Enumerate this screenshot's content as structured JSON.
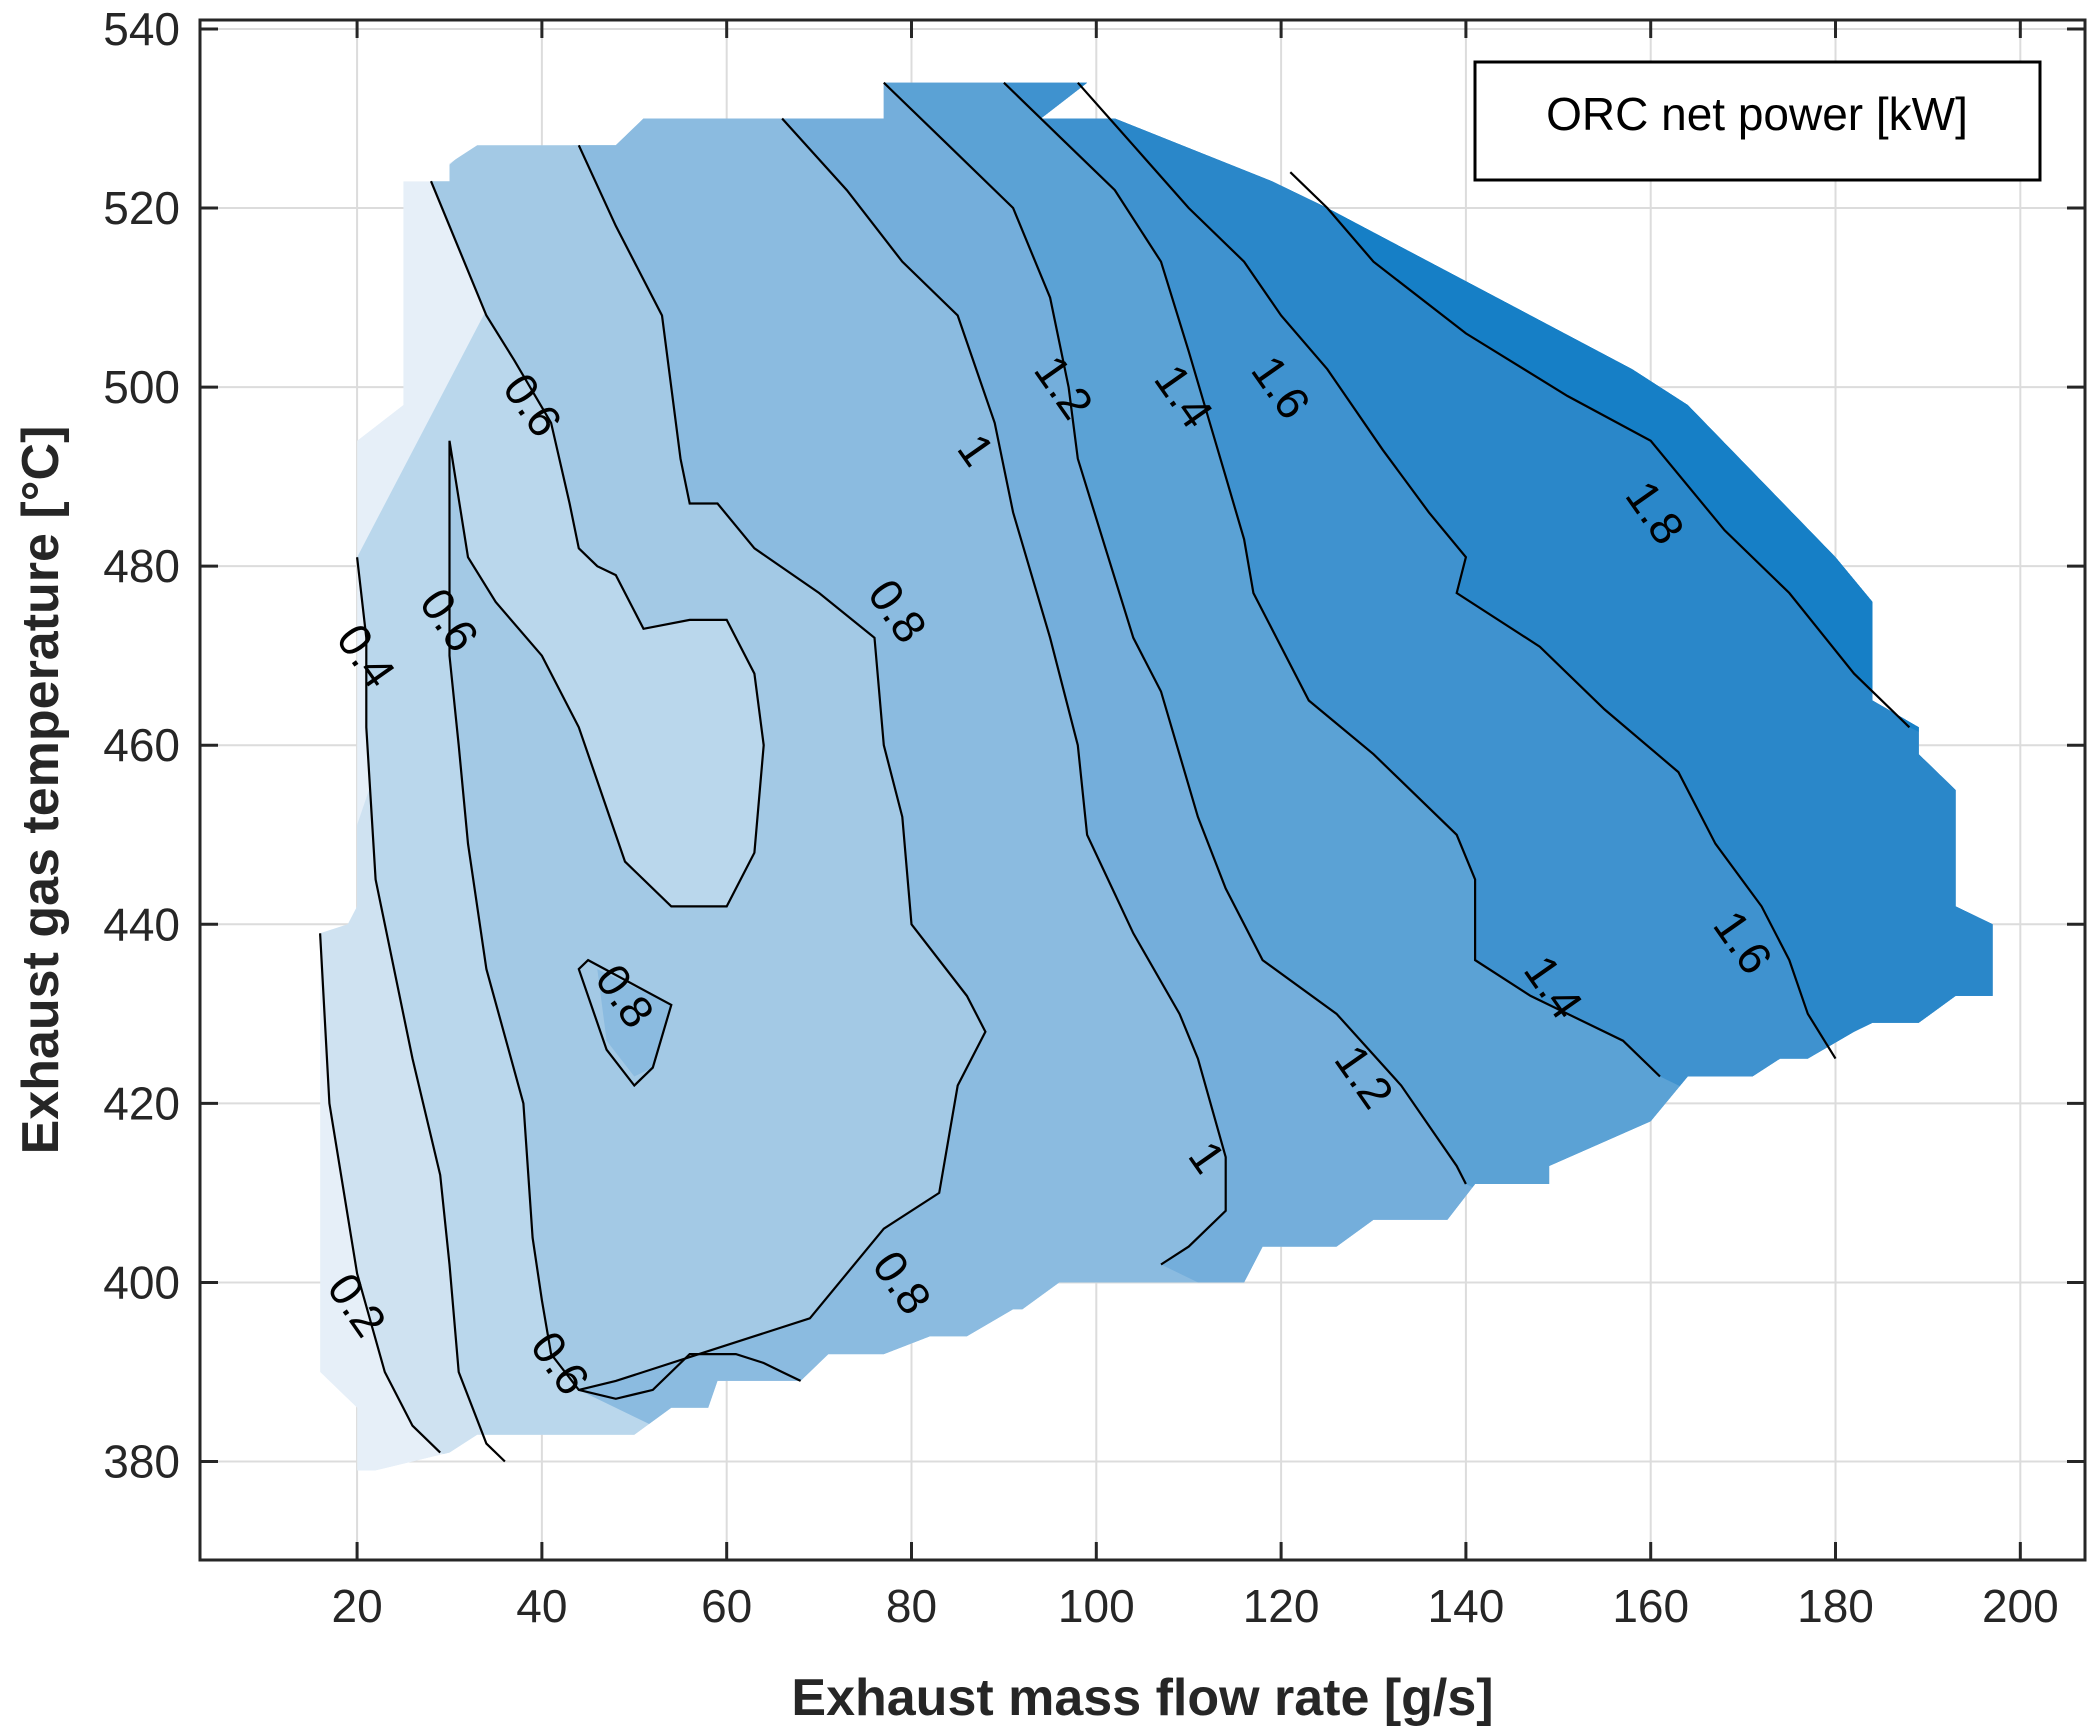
{
  "chart_data": {
    "type": "contour",
    "title": "",
    "legend": {
      "label": "ORC net power [kW]",
      "placement": "top-right"
    },
    "xlabel": "Exhaust mass flow rate [g/s]",
    "ylabel": "Exhaust gas temperature [°C]",
    "xlim": [
      3,
      207
    ],
    "ylim": [
      369,
      541
    ],
    "xticks": [
      20,
      40,
      60,
      80,
      100,
      120,
      140,
      160,
      180,
      200
    ],
    "yticks": [
      380,
      400,
      420,
      440,
      460,
      480,
      500,
      520,
      540
    ],
    "grid": true,
    "levels": [
      0.2,
      0.4,
      0.6,
      0.8,
      1.0,
      1.2,
      1.4,
      1.6,
      1.8
    ],
    "colors": {
      "below_0.2": "#e6eff8",
      "0.2-0.4": "#cfe2f1",
      "0.4-0.6": "#bad7ec",
      "0.6-0.8": "#a3c9e5",
      "0.8-1.0": "#8bbbe0",
      "1.0-1.2": "#74aedb",
      "1.2-1.4": "#5ba2d5",
      "1.4-1.6": "#3f92cf",
      "1.6-1.8": "#2a87c9",
      "above_1.8": "#167fc6",
      "contour_line": "#000000",
      "grid": "#dcdcdc",
      "axis": "#262626"
    },
    "domain_outline": [
      [
        27,
        523
      ],
      [
        30,
        523
      ],
      [
        30,
        525
      ],
      [
        33,
        527
      ],
      [
        44,
        527
      ],
      [
        48,
        527
      ],
      [
        51,
        530
      ],
      [
        66,
        530
      ],
      [
        77,
        530
      ],
      [
        77,
        534
      ],
      [
        90,
        534
      ],
      [
        99,
        534
      ],
      [
        94,
        530
      ],
      [
        102,
        530
      ],
      [
        119,
        523
      ],
      [
        125,
        520
      ],
      [
        158,
        502
      ],
      [
        164,
        498
      ],
      [
        180,
        481
      ],
      [
        184,
        476
      ],
      [
        184,
        465
      ],
      [
        189,
        462
      ],
      [
        189,
        459
      ],
      [
        193,
        455
      ],
      [
        193,
        442
      ],
      [
        197,
        440
      ],
      [
        197,
        432
      ],
      [
        193,
        432
      ],
      [
        189,
        429
      ],
      [
        184,
        429
      ],
      [
        182,
        428
      ],
      [
        177,
        425
      ],
      [
        174,
        425
      ],
      [
        171,
        423
      ],
      [
        164,
        423
      ],
      [
        160,
        418
      ],
      [
        149,
        413
      ],
      [
        149,
        411
      ],
      [
        141,
        411
      ],
      [
        138,
        407
      ],
      [
        130,
        407
      ],
      [
        126,
        404
      ],
      [
        118,
        404
      ],
      [
        116,
        400
      ],
      [
        107,
        400
      ],
      [
        96,
        400
      ],
      [
        92,
        397
      ],
      [
        91,
        397
      ],
      [
        86,
        394
      ],
      [
        82,
        394
      ],
      [
        77,
        392
      ],
      [
        71,
        392
      ],
      [
        68,
        389
      ],
      [
        59,
        389
      ],
      [
        58,
        386
      ],
      [
        54,
        386
      ],
      [
        50,
        383
      ],
      [
        43,
        383
      ],
      [
        39,
        383
      ],
      [
        33,
        383
      ],
      [
        30,
        381
      ],
      [
        22,
        379
      ],
      [
        20,
        379
      ],
      [
        20,
        386
      ],
      [
        16,
        390
      ],
      [
        16,
        439
      ],
      [
        19,
        440
      ],
      [
        20,
        442
      ],
      [
        20,
        494
      ],
      [
        25,
        498
      ],
      [
        25,
        523
      ]
    ],
    "contours": [
      {
        "level": 0.2,
        "label_at": [
          [
            20,
            397.5
          ]
        ],
        "path": [
          [
            16,
            439
          ],
          [
            17,
            420
          ],
          [
            20,
            401
          ],
          [
            23,
            390
          ],
          [
            26,
            384
          ],
          [
            29,
            381
          ]
        ]
      },
      {
        "level": 0.4,
        "label_at": [
          [
            21,
            470
          ]
        ],
        "path": [
          [
            20,
            481
          ],
          [
            21,
            472
          ],
          [
            21,
            462
          ],
          [
            22,
            445
          ],
          [
            26,
            425
          ],
          [
            29,
            412
          ],
          [
            30,
            402
          ],
          [
            31,
            390
          ],
          [
            34,
            382
          ],
          [
            36,
            380
          ]
        ]
      },
      {
        "level": 0.6,
        "label_at": [
          [
            39,
            498
          ],
          [
            30,
            474
          ],
          [
            42,
            391
          ]
        ],
        "path": [
          [
            28,
            523
          ],
          [
            34,
            508
          ],
          [
            37,
            503
          ],
          [
            41,
            496
          ],
          [
            43,
            487
          ],
          [
            44,
            482
          ],
          [
            46,
            480
          ],
          [
            48,
            479
          ],
          [
            51,
            473
          ],
          [
            56,
            474
          ],
          [
            60,
            474
          ],
          [
            63,
            468
          ],
          [
            64,
            460
          ],
          [
            63,
            448
          ],
          [
            60,
            442
          ],
          [
            54,
            442
          ],
          [
            49,
            447
          ],
          [
            46,
            456
          ],
          [
            44,
            462
          ],
          [
            40,
            470
          ],
          [
            35,
            476
          ],
          [
            32,
            481
          ],
          [
            30,
            494
          ],
          [
            30,
            470
          ],
          [
            31,
            460
          ],
          [
            32,
            449
          ],
          [
            34,
            435
          ],
          [
            38,
            420
          ],
          [
            39,
            405
          ],
          [
            40,
            398
          ],
          [
            41,
            392
          ],
          [
            44,
            388
          ],
          [
            48,
            387
          ],
          [
            52,
            388
          ],
          [
            56,
            392
          ],
          [
            61,
            392
          ],
          [
            64,
            391
          ],
          [
            66,
            390
          ],
          [
            68,
            389
          ]
        ]
      },
      {
        "level": 0.8,
        "label_at": [
          [
            49,
            432
          ],
          [
            78.5,
            475
          ],
          [
            79,
            400
          ]
        ],
        "path": [
          [
            44,
            527
          ],
          [
            48,
            518
          ],
          [
            53,
            508
          ],
          [
            55,
            492
          ],
          [
            56,
            487
          ],
          [
            59,
            487
          ],
          [
            63,
            482
          ],
          [
            70,
            477
          ],
          [
            76,
            472
          ],
          [
            77,
            460
          ],
          [
            79,
            452
          ],
          [
            80,
            440
          ],
          [
            86,
            432
          ],
          [
            88,
            428
          ],
          [
            85,
            422
          ],
          [
            83,
            410
          ],
          [
            77,
            406
          ],
          [
            69,
            396
          ],
          [
            63,
            394
          ],
          [
            57,
            392
          ],
          [
            51,
            390
          ],
          [
            48,
            389
          ],
          [
            44,
            388
          ]
        ]
      },
      {
        "level": 1.0,
        "label_at": [
          [
            87,
            493
          ],
          [
            112,
            414
          ]
        ],
        "path": [
          [
            66,
            530
          ],
          [
            73,
            522
          ],
          [
            79,
            514
          ],
          [
            85,
            508
          ],
          [
            89,
            496
          ],
          [
            91,
            486
          ],
          [
            95,
            472
          ],
          [
            98,
            460
          ],
          [
            99,
            450
          ],
          [
            104,
            439
          ],
          [
            109,
            430
          ],
          [
            111,
            425
          ],
          [
            114,
            414
          ],
          [
            114,
            408
          ],
          [
            110,
            404
          ],
          [
            107,
            402
          ]
        ]
      },
      {
        "level": 1.2,
        "label_at": [
          [
            96.5,
            500
          ],
          [
            129,
            423
          ]
        ],
        "path": [
          [
            77,
            534
          ],
          [
            84,
            527
          ],
          [
            91,
            520
          ],
          [
            95,
            510
          ],
          [
            97,
            500
          ],
          [
            98,
            492
          ],
          [
            101,
            482
          ],
          [
            104,
            472
          ],
          [
            107,
            466
          ],
          [
            111,
            452
          ],
          [
            114,
            444
          ],
          [
            118,
            436
          ],
          [
            126,
            430
          ],
          [
            133,
            422
          ],
          [
            139,
            413
          ],
          [
            140,
            411
          ]
        ]
      },
      {
        "level": 1.4,
        "label_at": [
          [
            109.5,
            499
          ],
          [
            149.5,
            433
          ]
        ],
        "path": [
          [
            90,
            534
          ],
          [
            96,
            528
          ],
          [
            102,
            522
          ],
          [
            107,
            514
          ],
          [
            110,
            504
          ],
          [
            112,
            497
          ],
          [
            114,
            490
          ],
          [
            116,
            483
          ],
          [
            117,
            477
          ],
          [
            123,
            465
          ],
          [
            130,
            459
          ],
          [
            139,
            450
          ],
          [
            141,
            445
          ],
          [
            141,
            436
          ],
          [
            147,
            432
          ],
          [
            157,
            427
          ],
          [
            161,
            423
          ]
        ]
      },
      {
        "level": 1.6,
        "label_at": [
          [
            120,
            500
          ],
          [
            170,
            438
          ]
        ],
        "path": [
          [
            98,
            534
          ],
          [
            104,
            527
          ],
          [
            110,
            520
          ],
          [
            116,
            514
          ],
          [
            120,
            508
          ],
          [
            125,
            502
          ],
          [
            131,
            493
          ],
          [
            136,
            486
          ],
          [
            140,
            481
          ],
          [
            139,
            477
          ],
          [
            148,
            471
          ],
          [
            155,
            464
          ],
          [
            163,
            457
          ],
          [
            167,
            449
          ],
          [
            172,
            442
          ],
          [
            175,
            436
          ],
          [
            177,
            430
          ],
          [
            180,
            425
          ]
        ]
      },
      {
        "level": 1.8,
        "label_at": [
          [
            160.5,
            486
          ]
        ],
        "path": [
          [
            121,
            524
          ],
          [
            125,
            520
          ],
          [
            130,
            514
          ],
          [
            140,
            506
          ],
          [
            151,
            499
          ],
          [
            160,
            494
          ],
          [
            168,
            484
          ],
          [
            175,
            477
          ],
          [
            182,
            468
          ],
          [
            188,
            462
          ]
        ]
      }
    ]
  }
}
